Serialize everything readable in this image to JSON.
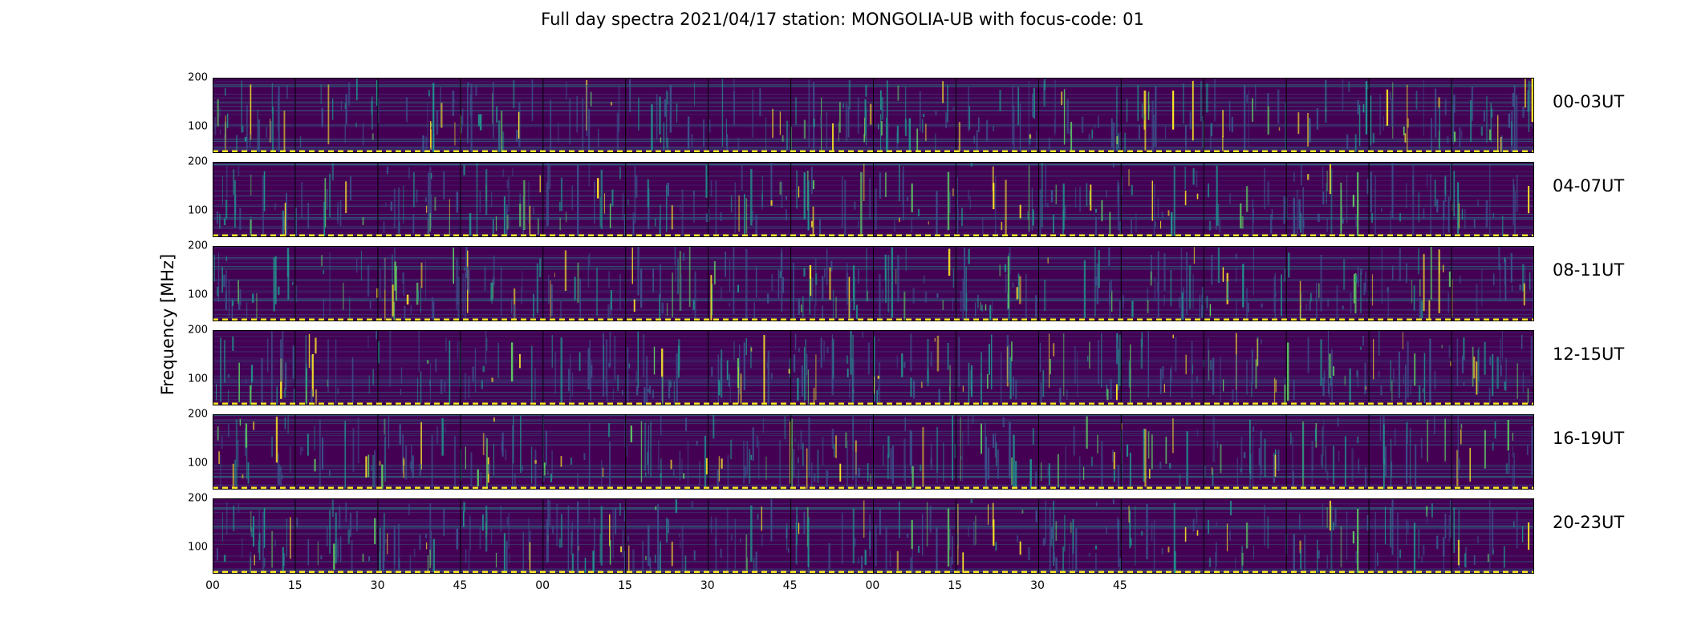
{
  "chart_data": {
    "type": "heatmap",
    "title": "Full day spectra 2021/04/17 station: MONGOLIA-UB with focus-code: 01",
    "ylabel": "Frequency [MHz]",
    "ylim": [
      45,
      200
    ],
    "yticks": [
      "200",
      "100"
    ],
    "xticks": [
      "00",
      "15",
      "30",
      "45",
      "00",
      "15",
      "30",
      "45",
      "00",
      "15",
      "30",
      "45"
    ],
    "colormap": "viridis",
    "rows": [
      {
        "label": "00-03UT"
      },
      {
        "label": "04-07UT"
      },
      {
        "label": "08-11UT"
      },
      {
        "label": "12-15UT"
      },
      {
        "label": "16-19UT"
      },
      {
        "label": "20-23UT"
      }
    ],
    "columns_per_row": 16
  },
  "colors": {
    "viridis_low": "#440154",
    "viridis_midlow": "#3b528b",
    "viridis_mid": "#21918c",
    "viridis_midhigh": "#5ec962",
    "viridis_high": "#fde725"
  }
}
